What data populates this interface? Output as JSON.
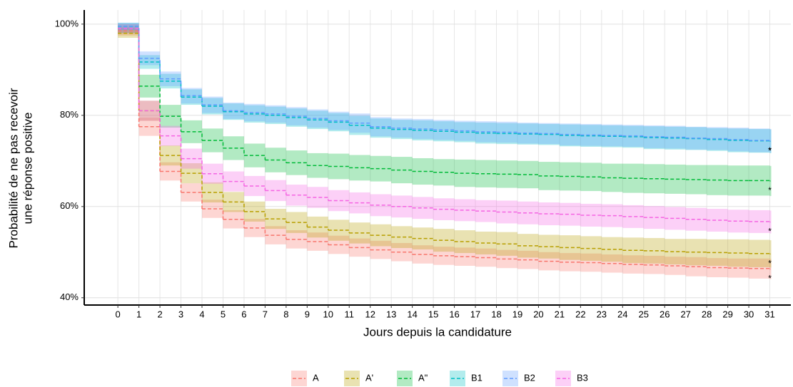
{
  "chart_data": {
    "type": "step",
    "ylabel": [
      "Probabilité de ne pas recevoir",
      "une réponse positive"
    ],
    "xlabel": "Jours depuis la candidature",
    "xlim": [
      -1.6,
      32
    ],
    "ylim": [
      38.4,
      103.1
    ],
    "xticks": [
      0,
      1,
      2,
      3,
      4,
      5,
      6,
      7,
      8,
      9,
      10,
      11,
      12,
      13,
      14,
      15,
      16,
      17,
      18,
      19,
      20,
      21,
      22,
      23,
      24,
      25,
      26,
      27,
      28,
      29,
      30,
      31
    ],
    "yticks": [
      {
        "value": 40,
        "label": "40%"
      },
      {
        "value": 60,
        "label": "60%"
      },
      {
        "value": 80,
        "label": "80%"
      },
      {
        "value": 100,
        "label": "100%"
      }
    ],
    "grid": true,
    "legend": "bottom",
    "x": [
      0,
      1,
      2,
      3,
      4,
      5,
      6,
      7,
      8,
      9,
      10,
      11,
      12,
      13,
      14,
      15,
      16,
      17,
      18,
      19,
      20,
      21,
      22,
      23,
      24,
      25,
      26,
      27,
      28,
      29,
      30,
      31
    ],
    "series": [
      {
        "name": "A",
        "color": "#F8766D",
        "end_label": "*",
        "values": [
          98.5,
          77.5,
          67.7,
          63.1,
          59.5,
          57.2,
          55.3,
          53.7,
          52.8,
          52.3,
          51.6,
          51,
          50.5,
          50,
          49.5,
          49.2,
          49,
          48.8,
          48.5,
          48.3,
          48,
          47.8,
          47.7,
          47.5,
          47.3,
          47.2,
          47,
          46.8,
          46.6,
          46.5,
          46.4,
          46.3
        ],
        "ci": [
          1,
          2,
          2,
          2,
          2,
          2,
          2,
          2,
          2,
          2,
          2,
          2,
          2,
          2,
          2,
          2,
          2,
          2,
          2,
          2,
          2,
          2,
          2,
          2,
          2,
          2,
          2,
          2.1,
          2.1,
          2.1,
          2.2,
          2.2
        ]
      },
      {
        "name": "A'",
        "color": "#B79F00",
        "end_label": "*",
        "values": [
          98,
          81,
          71.2,
          67.3,
          63.1,
          61,
          58.9,
          57.3,
          56.5,
          55.5,
          54.8,
          54.2,
          53.7,
          53.3,
          53,
          52.6,
          52.3,
          52,
          51.8,
          51.4,
          51.2,
          51,
          50.8,
          50.6,
          50.4,
          50.3,
          50.1,
          50,
          49.9,
          49.8,
          49.7,
          49.6
        ],
        "ci": [
          1,
          2.2,
          2.2,
          2.2,
          2.2,
          2.2,
          2.2,
          2.2,
          2.3,
          2.3,
          2.3,
          2.3,
          2.4,
          2.4,
          2.4,
          2.5,
          2.5,
          2.5,
          2.6,
          2.6,
          2.6,
          2.7,
          2.7,
          2.7,
          2.8,
          2.8,
          2.8,
          2.9,
          2.9,
          3,
          3,
          3
        ]
      },
      {
        "name": "A\"",
        "color": "#00BA38",
        "end_label": "*",
        "values": [
          99,
          86.4,
          79.8,
          76.4,
          74.5,
          72.8,
          71.2,
          70.2,
          69.6,
          69,
          68.8,
          68.5,
          68.3,
          68,
          67.7,
          67.5,
          67.3,
          67.2,
          67.1,
          67,
          66.7,
          66.6,
          66.5,
          66.3,
          66.2,
          66.1,
          66,
          65.9,
          65.8,
          65.7,
          65.7,
          65.6
        ],
        "ci": [
          1,
          2.5,
          2.5,
          2.5,
          2.6,
          2.6,
          2.6,
          2.7,
          2.7,
          2.7,
          2.8,
          2.8,
          2.8,
          2.9,
          2.9,
          2.9,
          3,
          3,
          3,
          3,
          3.1,
          3.1,
          3.1,
          3.1,
          3.2,
          3.2,
          3.2,
          3.2,
          3.3,
          3.3,
          3.3,
          3.3
        ]
      },
      {
        "name": "B1",
        "color": "#00BFC4",
        "end_label": "*",
        "values": [
          99.5,
          91.7,
          87.5,
          84,
          82,
          80.8,
          80.3,
          80,
          79.5,
          79,
          78.5,
          77.8,
          77.2,
          76.9,
          76.7,
          76.5,
          76.3,
          76.1,
          76,
          75.9,
          75.8,
          75.6,
          75.5,
          75.4,
          75.3,
          75.1,
          75,
          74.9,
          74.7,
          74.5,
          74.4,
          74.3
        ],
        "ci": [
          0.8,
          1.5,
          1.6,
          1.7,
          1.8,
          1.8,
          1.9,
          1.9,
          2,
          2,
          2,
          2.1,
          2.1,
          2.1,
          2.2,
          2.2,
          2.2,
          2.3,
          2.3,
          2.3,
          2.3,
          2.4,
          2.4,
          2.4,
          2.4,
          2.5,
          2.5,
          2.5,
          2.5,
          2.6,
          2.6,
          2.6
        ]
      },
      {
        "name": "B2",
        "color": "#619CFF",
        "end_label": "*",
        "values": [
          99.5,
          92.5,
          88,
          84.3,
          82.3,
          81,
          80.6,
          80.3,
          79.8,
          79.3,
          78.8,
          78.3,
          77.5,
          77.2,
          77,
          76.8,
          76.6,
          76.4,
          76.3,
          76.1,
          76,
          75.8,
          75.7,
          75.6,
          75.5,
          75.3,
          75.2,
          75,
          74.9,
          74.7,
          74.5,
          74.4
        ],
        "ci": [
          0.8,
          1.5,
          1.6,
          1.7,
          1.8,
          1.8,
          1.9,
          1.9,
          2,
          2,
          2,
          2.1,
          2.1,
          2.1,
          2.2,
          2.2,
          2.2,
          2.3,
          2.3,
          2.3,
          2.3,
          2.4,
          2.4,
          2.4,
          2.4,
          2.5,
          2.5,
          2.5,
          2.5,
          2.6,
          2.6,
          2.6
        ]
      },
      {
        "name": "B3",
        "color": "#F564E3",
        "end_label": "*",
        "values": [
          99,
          81,
          75.5,
          70.5,
          67.2,
          65.5,
          64.5,
          63.5,
          62.5,
          62,
          61.3,
          60.8,
          60.3,
          60,
          59.7,
          59.4,
          59.2,
          59,
          58.8,
          58.6,
          58.4,
          58.3,
          58.1,
          58,
          57.8,
          57.6,
          57.4,
          57.2,
          57,
          56.8,
          56.7,
          56.6
        ],
        "ci": [
          1,
          2.2,
          2.2,
          2.2,
          2.2,
          2.2,
          2.2,
          2.3,
          2.3,
          2.3,
          2.3,
          2.3,
          2.4,
          2.4,
          2.4,
          2.4,
          2.4,
          2.4,
          2.5,
          2.5,
          2.5,
          2.5,
          2.5,
          2.5,
          2.5,
          2.5,
          2.5,
          2.5,
          2.5,
          2.5,
          2.5,
          2.5
        ]
      }
    ]
  }
}
